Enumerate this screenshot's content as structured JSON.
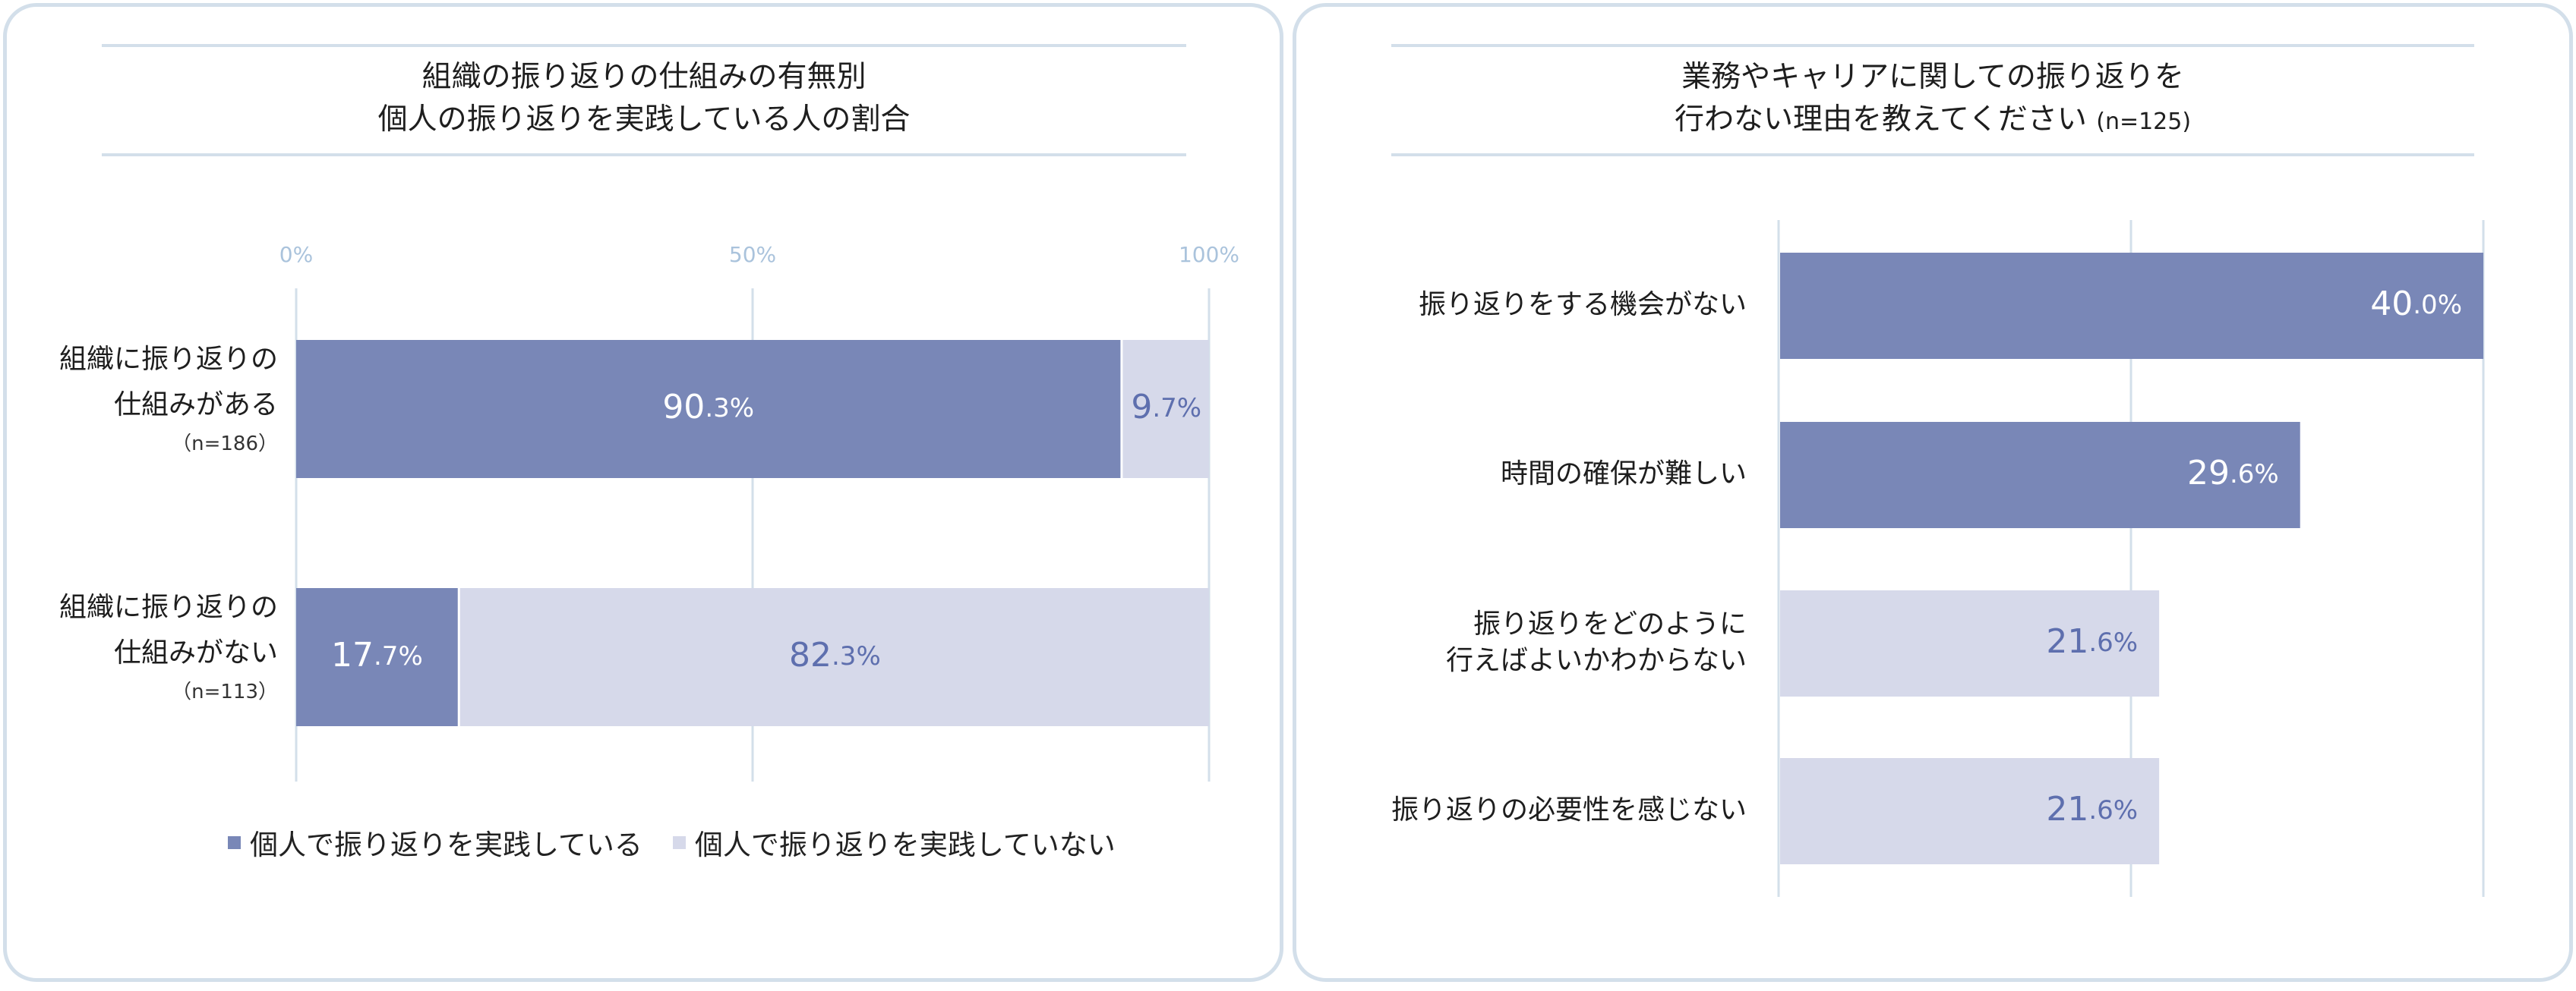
{
  "colors": {
    "primary": "#7987b7",
    "secondary": "#d6d9ea",
    "grid": "#d3dfea",
    "axis_tick": "#aac3dc",
    "label_dark_on_light": "#5e6fae",
    "border": "#d3dfea"
  },
  "left_panel": {
    "title_line1": "組織の振り返りの仕組みの有無別",
    "title_line2": "個人の振り返りを実践している人の割合"
  },
  "right_panel": {
    "title_line1": "業務やキャリアに関しての振り返りを",
    "title_line2": "行わない理由を教えてください",
    "title_n": "(n=125)"
  },
  "chart_data": [
    {
      "type": "bar",
      "orientation": "horizontal",
      "stacked": true,
      "percent_axis": true,
      "xlim": [
        0,
        100
      ],
      "x_ticks": [
        "0%",
        "50%",
        "100%"
      ],
      "categories": [
        {
          "line1": "組織に振り返りの",
          "line2": "仕組みがある",
          "n": "（n=186）"
        },
        {
          "line1": "組織に振り返りの",
          "line2": "仕組みがない",
          "n": "（n=113）"
        }
      ],
      "series": [
        {
          "name": "個人で振り返りを実践している",
          "values": [
            90.3,
            17.7
          ],
          "labels": [
            [
              "90",
              ".3%"
            ],
            [
              "17",
              ".7%"
            ]
          ]
        },
        {
          "name": "個人で振り返りを実践していない",
          "values": [
            9.7,
            82.3
          ],
          "labels": [
            [
              "9",
              ".7%"
            ],
            [
              "82",
              ".3%"
            ]
          ]
        }
      ],
      "legend": "bottom"
    },
    {
      "type": "bar",
      "orientation": "horizontal",
      "xlim": [
        0,
        40
      ],
      "categories": [
        [
          "振り返りをする機会がない"
        ],
        [
          "時間の確保が難しい"
        ],
        [
          "振り返りをどのように",
          "行えばよいかわからない"
        ],
        [
          "振り返りの必要性を感じない"
        ]
      ],
      "values": [
        40.0,
        29.6,
        21.6,
        21.6
      ],
      "labels": [
        [
          "40",
          ".0%"
        ],
        [
          "29",
          ".6%"
        ],
        [
          "21",
          ".6%"
        ],
        [
          "21",
          ".6%"
        ]
      ],
      "highlight": [
        true,
        true,
        false,
        false
      ]
    }
  ]
}
